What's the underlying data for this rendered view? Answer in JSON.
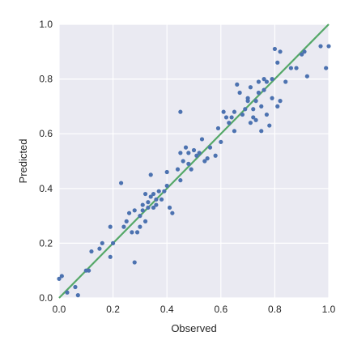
{
  "chart_data": {
    "type": "scatter",
    "title": "",
    "xlabel": "Observed",
    "ylabel": "Predicted",
    "xlim": [
      0.0,
      1.0
    ],
    "ylim": [
      0.0,
      1.0
    ],
    "xticks": [
      "0.0",
      "0.2",
      "0.4",
      "0.6",
      "0.8",
      "1.0"
    ],
    "yticks": [
      "0.0",
      "0.2",
      "0.4",
      "0.6",
      "0.8",
      "1.0"
    ],
    "grid": true,
    "colors": {
      "background": "#eaeaf2",
      "grid": "#ffffff",
      "points": "#4c72b0",
      "line": "#55a868"
    },
    "reference_line": {
      "from": [
        0.0,
        0.0
      ],
      "to": [
        1.0,
        1.0
      ]
    },
    "points": [
      [
        0.0,
        0.07
      ],
      [
        0.01,
        0.08
      ],
      [
        0.03,
        0.02
      ],
      [
        0.06,
        0.04
      ],
      [
        0.07,
        0.01
      ],
      [
        0.1,
        0.1
      ],
      [
        0.11,
        0.1
      ],
      [
        0.12,
        0.17
      ],
      [
        0.15,
        0.18
      ],
      [
        0.16,
        0.2
      ],
      [
        0.19,
        0.15
      ],
      [
        0.19,
        0.26
      ],
      [
        0.2,
        0.2
      ],
      [
        0.23,
        0.42
      ],
      [
        0.24,
        0.26
      ],
      [
        0.25,
        0.28
      ],
      [
        0.26,
        0.31
      ],
      [
        0.27,
        0.24
      ],
      [
        0.28,
        0.32
      ],
      [
        0.28,
        0.13
      ],
      [
        0.29,
        0.24
      ],
      [
        0.3,
        0.26
      ],
      [
        0.3,
        0.3
      ],
      [
        0.31,
        0.34
      ],
      [
        0.31,
        0.32
      ],
      [
        0.32,
        0.38
      ],
      [
        0.32,
        0.28
      ],
      [
        0.33,
        0.33
      ],
      [
        0.33,
        0.35
      ],
      [
        0.34,
        0.37
      ],
      [
        0.34,
        0.45
      ],
      [
        0.35,
        0.33
      ],
      [
        0.35,
        0.38
      ],
      [
        0.36,
        0.34
      ],
      [
        0.36,
        0.36
      ],
      [
        0.37,
        0.39
      ],
      [
        0.38,
        0.36
      ],
      [
        0.39,
        0.39
      ],
      [
        0.4,
        0.46
      ],
      [
        0.4,
        0.41
      ],
      [
        0.41,
        0.33
      ],
      [
        0.42,
        0.31
      ],
      [
        0.44,
        0.47
      ],
      [
        0.45,
        0.43
      ],
      [
        0.45,
        0.53
      ],
      [
        0.45,
        0.68
      ],
      [
        0.46,
        0.5
      ],
      [
        0.47,
        0.55
      ],
      [
        0.48,
        0.53
      ],
      [
        0.48,
        0.49
      ],
      [
        0.49,
        0.47
      ],
      [
        0.5,
        0.54
      ],
      [
        0.51,
        0.52
      ],
      [
        0.52,
        0.53
      ],
      [
        0.53,
        0.58
      ],
      [
        0.54,
        0.5
      ],
      [
        0.55,
        0.51
      ],
      [
        0.56,
        0.55
      ],
      [
        0.58,
        0.52
      ],
      [
        0.59,
        0.62
      ],
      [
        0.6,
        0.57
      ],
      [
        0.61,
        0.68
      ],
      [
        0.62,
        0.66
      ],
      [
        0.63,
        0.64
      ],
      [
        0.64,
        0.66
      ],
      [
        0.65,
        0.61
      ],
      [
        0.65,
        0.68
      ],
      [
        0.66,
        0.78
      ],
      [
        0.67,
        0.75
      ],
      [
        0.68,
        0.67
      ],
      [
        0.69,
        0.69
      ],
      [
        0.7,
        0.72
      ],
      [
        0.7,
        0.73
      ],
      [
        0.71,
        0.77
      ],
      [
        0.71,
        0.64
      ],
      [
        0.72,
        0.69
      ],
      [
        0.72,
        0.66
      ],
      [
        0.73,
        0.65
      ],
      [
        0.73,
        0.72
      ],
      [
        0.74,
        0.79
      ],
      [
        0.74,
        0.75
      ],
      [
        0.75,
        0.7
      ],
      [
        0.75,
        0.61
      ],
      [
        0.76,
        0.76
      ],
      [
        0.76,
        0.8
      ],
      [
        0.77,
        0.79
      ],
      [
        0.77,
        0.67
      ],
      [
        0.78,
        0.63
      ],
      [
        0.79,
        0.8
      ],
      [
        0.79,
        0.73
      ],
      [
        0.8,
        0.91
      ],
      [
        0.81,
        0.7
      ],
      [
        0.81,
        0.86
      ],
      [
        0.82,
        0.9
      ],
      [
        0.82,
        0.72
      ],
      [
        0.84,
        0.79
      ],
      [
        0.86,
        0.84
      ],
      [
        0.88,
        0.84
      ],
      [
        0.9,
        0.89
      ],
      [
        0.91,
        0.9
      ],
      [
        0.92,
        0.81
      ],
      [
        0.97,
        0.92
      ],
      [
        0.99,
        0.84
      ],
      [
        1.0,
        0.92
      ]
    ]
  }
}
